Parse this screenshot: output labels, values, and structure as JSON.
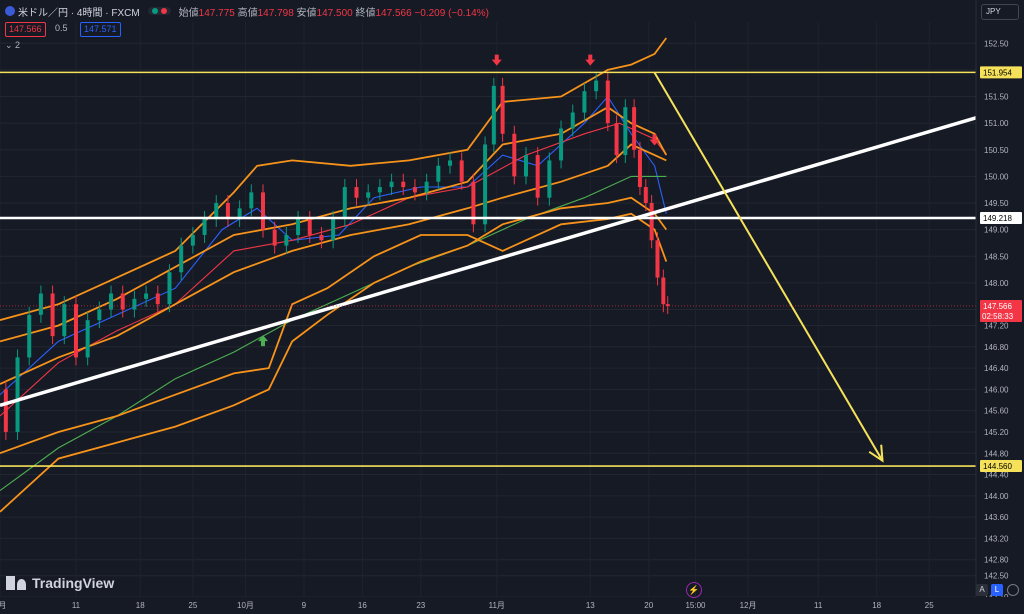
{
  "header": {
    "symbol_title": "米ドル／円 · 4時間 · FXCM",
    "open_label": "始値",
    "open": "147.775",
    "high_label": "高値",
    "high": "147.798",
    "low_label": "安値",
    "low": "147.500",
    "close_label": "終値",
    "close": "147.566",
    "change": "−0.209 (−0.14%)",
    "ask": "147.566",
    "spread": "0.5",
    "bid": "147.571",
    "indicator_toggle": "⌄ 2"
  },
  "currency_label": "JPY",
  "watermark": "TradingView",
  "buttons": {
    "auto": "A",
    "log": "L"
  },
  "chart_data": {
    "type": "line",
    "title": "",
    "xlabel": "",
    "ylabel": "",
    "ylim": [
      142.1,
      152.9
    ],
    "grid": true,
    "price_scale_ticks": [
      "152.50",
      "152.00",
      "151.50",
      "151.00",
      "150.50",
      "150.00",
      "149.50",
      "149.00",
      "148.50",
      "148.00",
      "147.50",
      "147.20",
      "146.80",
      "146.40",
      "146.00",
      "145.60",
      "145.20",
      "144.80",
      "144.40",
      "144.00",
      "143.60",
      "143.20",
      "142.80",
      "142.50",
      "142.10"
    ],
    "time_labels": [
      {
        "t": 0,
        "label": "9月"
      },
      {
        "t": 13,
        "label": "11"
      },
      {
        "t": 24,
        "label": "18"
      },
      {
        "t": 33,
        "label": "25"
      },
      {
        "t": 42,
        "label": "10月"
      },
      {
        "t": 52,
        "label": "9"
      },
      {
        "t": 62,
        "label": "16"
      },
      {
        "t": 72,
        "label": "23"
      },
      {
        "t": 85,
        "label": "11月"
      },
      {
        "t": 101,
        "label": "13"
      },
      {
        "t": 111,
        "label": "20"
      },
      {
        "t": 119,
        "label": "15:00"
      },
      {
        "t": 128,
        "label": "12月"
      },
      {
        "t": 140,
        "label": "11"
      },
      {
        "t": 150,
        "label": "18"
      },
      {
        "t": 159,
        "label": "25"
      }
    ],
    "x_range": [
      0,
      167
    ],
    "price_series": [
      {
        "t": 0,
        "v": 146.0
      },
      {
        "t": 2,
        "v": 145.2
      },
      {
        "t": 4,
        "v": 146.6
      },
      {
        "t": 6,
        "v": 147.4
      },
      {
        "t": 8,
        "v": 147.8
      },
      {
        "t": 10,
        "v": 147.0
      },
      {
        "t": 12,
        "v": 147.6
      },
      {
        "t": 14,
        "v": 146.6
      },
      {
        "t": 16,
        "v": 147.3
      },
      {
        "t": 18,
        "v": 147.5
      },
      {
        "t": 20,
        "v": 147.8
      },
      {
        "t": 22,
        "v": 147.5
      },
      {
        "t": 24,
        "v": 147.7
      },
      {
        "t": 26,
        "v": 147.8
      },
      {
        "t": 28,
        "v": 147.6
      },
      {
        "t": 30,
        "v": 148.2
      },
      {
        "t": 32,
        "v": 148.7
      },
      {
        "t": 34,
        "v": 148.9
      },
      {
        "t": 36,
        "v": 149.2
      },
      {
        "t": 38,
        "v": 149.5
      },
      {
        "t": 40,
        "v": 149.2
      },
      {
        "t": 42,
        "v": 149.4
      },
      {
        "t": 44,
        "v": 149.7
      },
      {
        "t": 46,
        "v": 149.0
      },
      {
        "t": 48,
        "v": 148.7
      },
      {
        "t": 50,
        "v": 148.9
      },
      {
        "t": 52,
        "v": 149.2
      },
      {
        "t": 54,
        "v": 148.9
      },
      {
        "t": 56,
        "v": 148.8
      },
      {
        "t": 58,
        "v": 149.2
      },
      {
        "t": 60,
        "v": 149.8
      },
      {
        "t": 62,
        "v": 149.6
      },
      {
        "t": 64,
        "v": 149.7
      },
      {
        "t": 66,
        "v": 149.8
      },
      {
        "t": 68,
        "v": 149.9
      },
      {
        "t": 70,
        "v": 149.8
      },
      {
        "t": 72,
        "v": 149.7
      },
      {
        "t": 74,
        "v": 149.9
      },
      {
        "t": 76,
        "v": 150.2
      },
      {
        "t": 78,
        "v": 150.3
      },
      {
        "t": 80,
        "v": 149.9
      },
      {
        "t": 82,
        "v": 149.1
      },
      {
        "t": 84,
        "v": 150.6
      },
      {
        "t": 85,
        "v": 151.7
      },
      {
        "t": 87,
        "v": 150.8
      },
      {
        "t": 89,
        "v": 150.0
      },
      {
        "t": 91,
        "v": 150.4
      },
      {
        "t": 93,
        "v": 149.6
      },
      {
        "t": 95,
        "v": 150.3
      },
      {
        "t": 97,
        "v": 150.9
      },
      {
        "t": 99,
        "v": 151.2
      },
      {
        "t": 101,
        "v": 151.6
      },
      {
        "t": 103,
        "v": 151.8
      },
      {
        "t": 105,
        "v": 151.0
      },
      {
        "t": 106,
        "v": 150.4
      },
      {
        "t": 108,
        "v": 151.3
      },
      {
        "t": 109,
        "v": 150.5
      },
      {
        "t": 110,
        "v": 149.8
      },
      {
        "t": 111,
        "v": 149.5
      },
      {
        "t": 112,
        "v": 148.8
      },
      {
        "t": 113,
        "v": 148.1
      },
      {
        "t": 114,
        "v": 147.6
      },
      {
        "t": 114.5,
        "v": 147.566
      }
    ],
    "overlay_lines": [
      {
        "name": "",
        "color": "#2962ff",
        "values": [
          {
            "t": 0,
            "v": 145.9
          },
          {
            "t": 10,
            "v": 146.9
          },
          {
            "t": 20,
            "v": 147.4
          },
          {
            "t": 30,
            "v": 147.9
          },
          {
            "t": 38,
            "v": 149.0
          },
          {
            "t": 44,
            "v": 149.4
          },
          {
            "t": 50,
            "v": 148.8
          },
          {
            "t": 58,
            "v": 148.9
          },
          {
            "t": 64,
            "v": 149.6
          },
          {
            "t": 72,
            "v": 149.8
          },
          {
            "t": 80,
            "v": 149.8
          },
          {
            "t": 86,
            "v": 150.4
          },
          {
            "t": 92,
            "v": 150.2
          },
          {
            "t": 100,
            "v": 151.0
          },
          {
            "t": 104,
            "v": 151.5
          },
          {
            "t": 108,
            "v": 150.8
          },
          {
            "t": 112,
            "v": 150.2
          },
          {
            "t": 114,
            "v": 149.3
          }
        ]
      },
      {
        "name": "",
        "color": "#f23645",
        "values": [
          {
            "t": 0,
            "v": 145.5
          },
          {
            "t": 10,
            "v": 146.5
          },
          {
            "t": 20,
            "v": 147.1
          },
          {
            "t": 30,
            "v": 147.6
          },
          {
            "t": 40,
            "v": 148.6
          },
          {
            "t": 50,
            "v": 148.8
          },
          {
            "t": 60,
            "v": 149.1
          },
          {
            "t": 70,
            "v": 149.6
          },
          {
            "t": 80,
            "v": 149.8
          },
          {
            "t": 90,
            "v": 150.4
          },
          {
            "t": 100,
            "v": 150.8
          },
          {
            "t": 106,
            "v": 151.0
          },
          {
            "t": 112,
            "v": 150.7
          },
          {
            "t": 114,
            "v": 150.4
          }
        ]
      },
      {
        "name": "",
        "color": "#4caf50",
        "values": [
          {
            "t": 0,
            "v": 144.1
          },
          {
            "t": 10,
            "v": 144.9
          },
          {
            "t": 20,
            "v": 145.5
          },
          {
            "t": 30,
            "v": 146.2
          },
          {
            "t": 40,
            "v": 146.7
          },
          {
            "t": 50,
            "v": 147.3
          },
          {
            "t": 60,
            "v": 147.8
          },
          {
            "t": 70,
            "v": 148.3
          },
          {
            "t": 80,
            "v": 148.7
          },
          {
            "t": 90,
            "v": 149.2
          },
          {
            "t": 100,
            "v": 149.6
          },
          {
            "t": 108,
            "v": 150.0
          },
          {
            "t": 114,
            "v": 150.0
          }
        ]
      },
      {
        "name": "",
        "color": "#f7931a",
        "values": [
          {
            "t": 0,
            "v": 147.3
          },
          {
            "t": 10,
            "v": 147.6
          },
          {
            "t": 20,
            "v": 148.1
          },
          {
            "t": 30,
            "v": 148.6
          },
          {
            "t": 40,
            "v": 149.7
          },
          {
            "t": 44,
            "v": 150.2
          },
          {
            "t": 50,
            "v": 150.3
          },
          {
            "t": 60,
            "v": 150.2
          },
          {
            "t": 70,
            "v": 150.3
          },
          {
            "t": 80,
            "v": 150.5
          },
          {
            "t": 86,
            "v": 151.4
          },
          {
            "t": 96,
            "v": 151.5
          },
          {
            "t": 104,
            "v": 152.0
          },
          {
            "t": 108,
            "v": 152.1
          },
          {
            "t": 112,
            "v": 152.3
          },
          {
            "t": 114,
            "v": 152.6
          }
        ]
      },
      {
        "name": "",
        "color": "#f7931a",
        "values": [
          {
            "t": 0,
            "v": 146.9
          },
          {
            "t": 10,
            "v": 147.2
          },
          {
            "t": 20,
            "v": 147.7
          },
          {
            "t": 30,
            "v": 148.3
          },
          {
            "t": 40,
            "v": 148.9
          },
          {
            "t": 50,
            "v": 149.1
          },
          {
            "t": 60,
            "v": 149.4
          },
          {
            "t": 70,
            "v": 149.6
          },
          {
            "t": 80,
            "v": 149.9
          },
          {
            "t": 86,
            "v": 150.6
          },
          {
            "t": 96,
            "v": 150.8
          },
          {
            "t": 104,
            "v": 151.3
          },
          {
            "t": 108,
            "v": 151.0
          },
          {
            "t": 112,
            "v": 150.8
          },
          {
            "t": 114,
            "v": 150.4
          }
        ]
      },
      {
        "name": "",
        "color": "#f7931a",
        "values": [
          {
            "t": 0,
            "v": 146.1
          },
          {
            "t": 10,
            "v": 146.6
          },
          {
            "t": 20,
            "v": 147.0
          },
          {
            "t": 30,
            "v": 147.6
          },
          {
            "t": 40,
            "v": 148.2
          },
          {
            "t": 50,
            "v": 148.6
          },
          {
            "t": 60,
            "v": 148.9
          },
          {
            "t": 70,
            "v": 149.1
          },
          {
            "t": 80,
            "v": 149.4
          },
          {
            "t": 86,
            "v": 149.6
          },
          {
            "t": 96,
            "v": 149.9
          },
          {
            "t": 104,
            "v": 150.2
          },
          {
            "t": 108,
            "v": 150.6
          },
          {
            "t": 112,
            "v": 150.4
          },
          {
            "t": 114,
            "v": 150.3
          }
        ]
      },
      {
        "name": "",
        "color": "#f7931a",
        "values": [
          {
            "t": 0,
            "v": 144.8
          },
          {
            "t": 10,
            "v": 145.2
          },
          {
            "t": 20,
            "v": 145.5
          },
          {
            "t": 30,
            "v": 145.9
          },
          {
            "t": 40,
            "v": 146.3
          },
          {
            "t": 46,
            "v": 146.4
          },
          {
            "t": 50,
            "v": 147.6
          },
          {
            "t": 56,
            "v": 147.9
          },
          {
            "t": 64,
            "v": 148.5
          },
          {
            "t": 72,
            "v": 148.9
          },
          {
            "t": 80,
            "v": 148.9
          },
          {
            "t": 86,
            "v": 148.6
          },
          {
            "t": 96,
            "v": 149.1
          },
          {
            "t": 104,
            "v": 149.2
          },
          {
            "t": 108,
            "v": 149.3
          },
          {
            "t": 112,
            "v": 149.0
          },
          {
            "t": 114,
            "v": 148.4
          }
        ]
      },
      {
        "name": "",
        "color": "#f7931a",
        "values": [
          {
            "t": 0,
            "v": 143.7
          },
          {
            "t": 10,
            "v": 144.7
          },
          {
            "t": 20,
            "v": 145.0
          },
          {
            "t": 30,
            "v": 145.3
          },
          {
            "t": 40,
            "v": 145.7
          },
          {
            "t": 46,
            "v": 146.0
          },
          {
            "t": 50,
            "v": 146.9
          },
          {
            "t": 56,
            "v": 147.4
          },
          {
            "t": 64,
            "v": 148.0
          },
          {
            "t": 72,
            "v": 148.4
          },
          {
            "t": 80,
            "v": 148.7
          },
          {
            "t": 86,
            "v": 149.1
          },
          {
            "t": 96,
            "v": 149.4
          },
          {
            "t": 104,
            "v": 149.5
          },
          {
            "t": 108,
            "v": 149.6
          },
          {
            "t": 112,
            "v": 149.3
          },
          {
            "t": 114,
            "v": 149.0
          }
        ]
      }
    ],
    "horizontal_levels": [
      {
        "price": 151.954,
        "label": "151.954",
        "color": "#f5e25a"
      },
      {
        "price": 149.218,
        "label": "149.218",
        "color": "#ffffff"
      },
      {
        "price": 144.56,
        "label": "144.560",
        "color": "#f5e25a"
      }
    ],
    "trendline": {
      "color": "#ffffff",
      "points": [
        {
          "t": 0,
          "v": 145.7
        },
        {
          "t": 167,
          "v": 151.1
        }
      ]
    },
    "projection_arrow": {
      "color": "#f5e25a",
      "from": {
        "t": 112,
        "v": 151.95
      },
      "to": {
        "t": 151,
        "v": 144.66
      }
    },
    "markers": [
      {
        "t": 85,
        "v": 152.1,
        "dir": "down",
        "color": "#f23645"
      },
      {
        "t": 101,
        "v": 152.1,
        "dir": "down",
        "color": "#f23645"
      },
      {
        "t": 112,
        "v": 150.6,
        "dir": "down",
        "color": "#f23645"
      },
      {
        "t": 45,
        "v": 147.0,
        "dir": "up",
        "color": "#4caf50"
      }
    ],
    "current_price": {
      "value": 147.566,
      "label": "147.566",
      "countdown": "02:58:33",
      "color": "#f23645"
    }
  }
}
